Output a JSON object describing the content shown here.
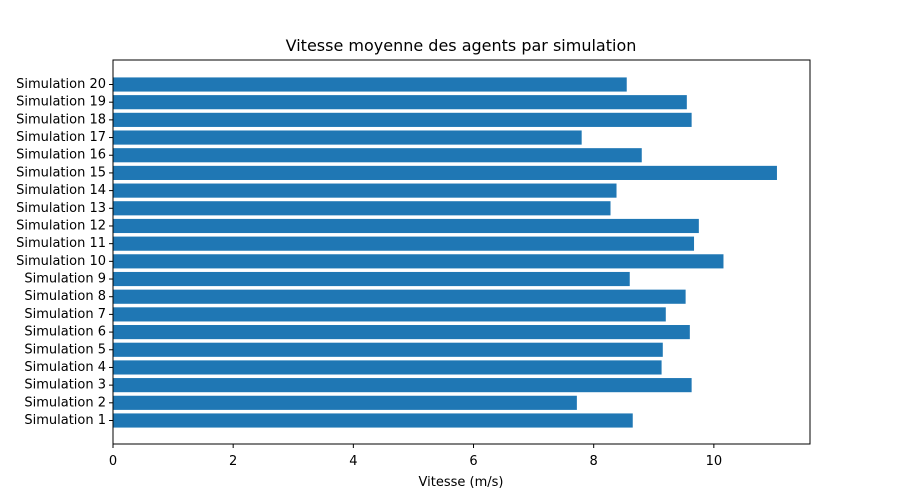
{
  "chart_data": {
    "type": "bar",
    "orientation": "horizontal",
    "title": "Vitesse moyenne des agents par simulation",
    "xlabel": "Vitesse (m/s)",
    "ylabel": "",
    "xlim": [
      0,
      11.6
    ],
    "xticks": [
      0,
      2,
      4,
      6,
      8,
      10
    ],
    "grid": false,
    "color": "#1f77b4",
    "categories": [
      "Simulation 1",
      "Simulation 2",
      "Simulation 3",
      "Simulation 4",
      "Simulation 5",
      "Simulation 6",
      "Simulation 7",
      "Simulation 8",
      "Simulation 9",
      "Simulation 10",
      "Simulation 11",
      "Simulation 12",
      "Simulation 13",
      "Simulation 14",
      "Simulation 15",
      "Simulation 16",
      "Simulation 17",
      "Simulation 18",
      "Simulation 19",
      "Simulation 20"
    ],
    "values": [
      8.65,
      7.72,
      9.63,
      9.13,
      9.15,
      9.6,
      9.2,
      9.53,
      8.6,
      10.16,
      9.67,
      9.75,
      8.28,
      8.38,
      11.05,
      8.8,
      7.8,
      9.63,
      9.55,
      8.55
    ]
  }
}
